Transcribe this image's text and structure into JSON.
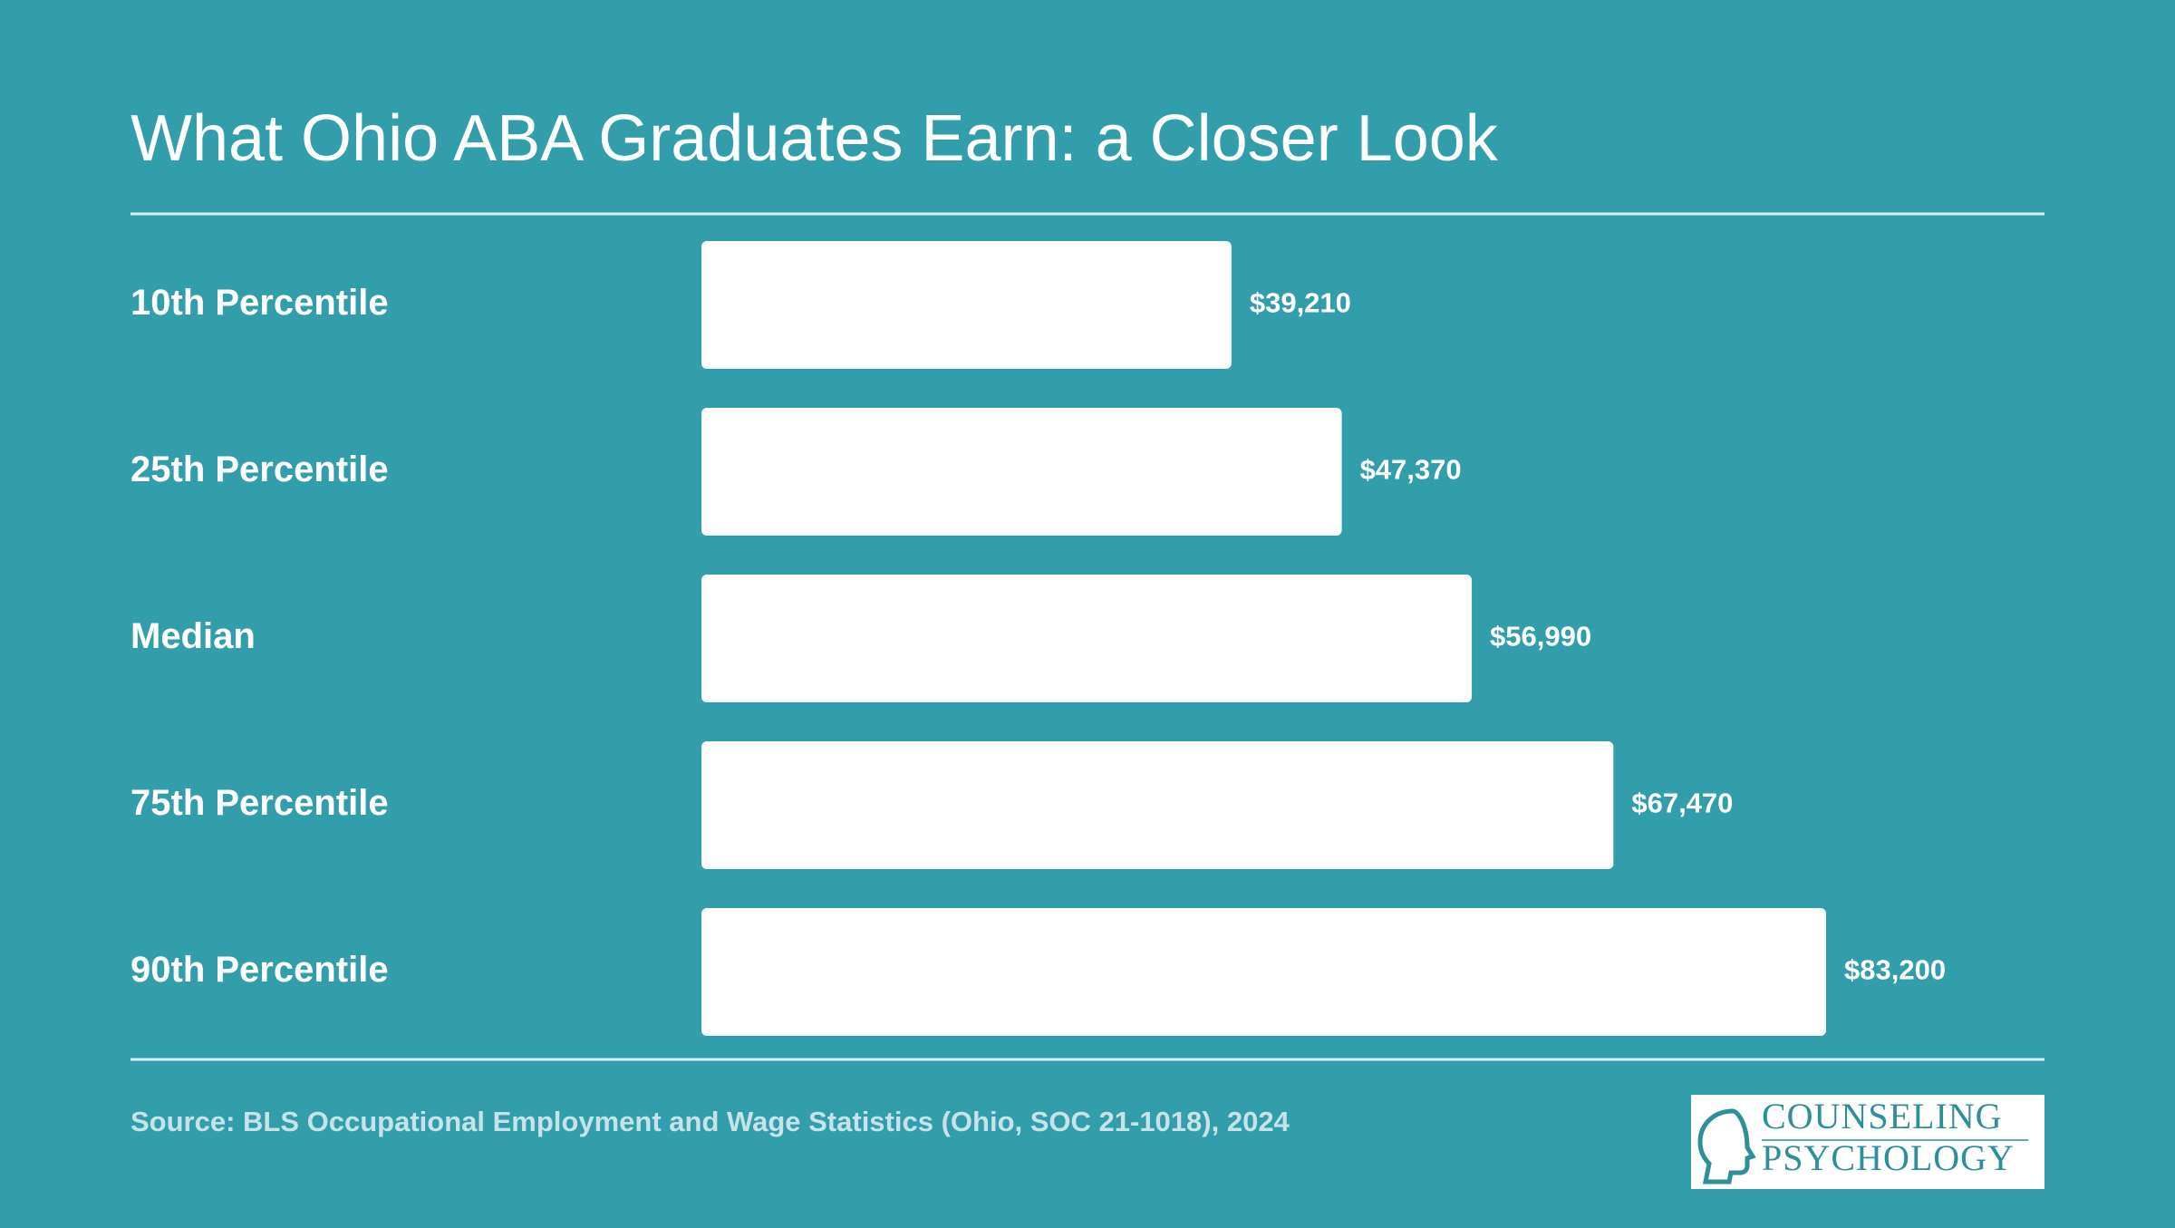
{
  "chart_data": {
    "type": "bar",
    "orientation": "horizontal",
    "title": "What Ohio ABA Graduates Earn: a Closer Look",
    "categories": [
      "10th Percentile",
      "25th Percentile",
      "Median",
      "75th Percentile",
      "90th Percentile"
    ],
    "values": [
      39210,
      47370,
      56990,
      67470,
      83200
    ],
    "value_labels": [
      "$39,210",
      "$47,370",
      "$56,990",
      "$67,470",
      "$83,200"
    ],
    "color": "#ffffff",
    "source": "Source: BLS Occupational Employment and Wage Statistics (Ohio, SOC 21-1018), 2024"
  },
  "logo": {
    "lines": [
      "COUNSELING",
      "PSYCHOLOGY"
    ]
  }
}
